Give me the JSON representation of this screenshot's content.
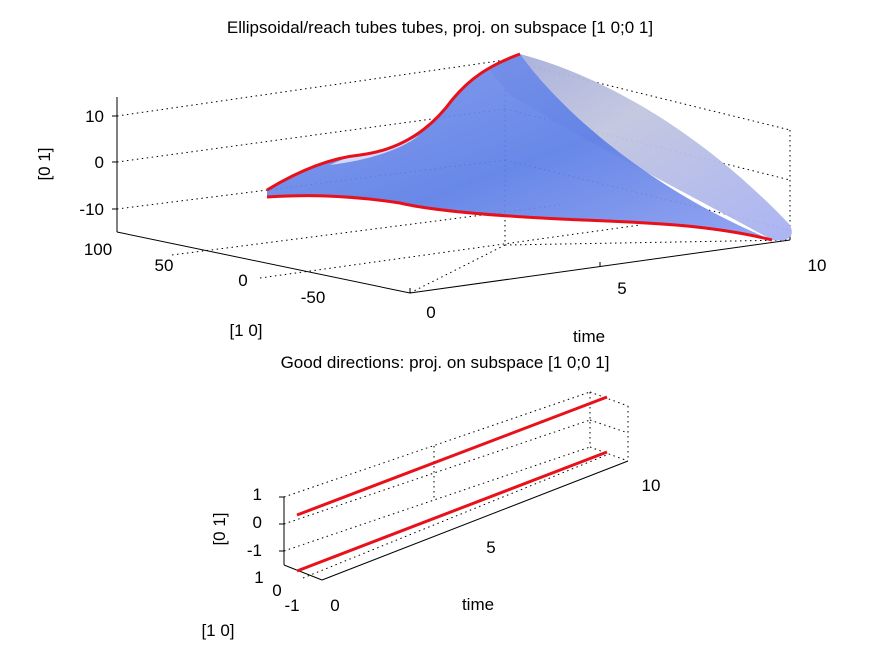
{
  "colors": {
    "tube_fill": "#5d7fe6",
    "tube_fill_light": "#b6bdf5",
    "tube_highlight": "#c9cfd8",
    "curve": "#e8111a",
    "axis": "#000000"
  },
  "chart_data": [
    {
      "type": "surface3d",
      "title": "Ellipsoidal/reach tubes tubes, proj. on subspace [1 0;0 1]",
      "xlabel": "time",
      "ylabel": "[1 0]",
      "zlabel": "[0 1]",
      "xlim": [
        0,
        10
      ],
      "ylim": [
        -80,
        100
      ],
      "zlim": [
        -15,
        15
      ],
      "xticks": [
        "0",
        "5",
        "10"
      ],
      "yticks": [
        "100",
        "50",
        "0",
        "-50"
      ],
      "zticks": [
        "10",
        "0",
        "-10"
      ],
      "grid": true,
      "boundary_curves": [
        {
          "color": "red",
          "time": [
            0,
            1,
            2,
            3,
            4,
            5,
            6,
            7,
            8,
            9,
            10
          ],
          "x": [
            -3,
            -8,
            -14,
            -22,
            -30,
            -38,
            -46,
            -55,
            -63,
            -70,
            -76
          ],
          "y": [
            -5,
            -3,
            1,
            5,
            9,
            13,
            16,
            19,
            22,
            24,
            26
          ]
        },
        {
          "color": "red",
          "time": [
            0,
            1,
            2,
            3,
            4,
            5,
            6,
            7,
            8,
            9,
            10
          ],
          "x": [
            3,
            12,
            25,
            40,
            55,
            68,
            76,
            80,
            83,
            86,
            90
          ],
          "y": [
            5,
            2,
            -2,
            -6,
            -10,
            -13,
            -15,
            -16,
            -17,
            -18,
            -18
          ]
        }
      ]
    },
    {
      "type": "line3d",
      "title": "Good directions: proj. on subspace [1 0;0 1]",
      "xlabel": "time",
      "ylabel": "[1 0]",
      "zlabel": "[0 1]",
      "xlim": [
        0,
        10
      ],
      "ylim": [
        -1,
        1
      ],
      "zlim": [
        -1,
        1
      ],
      "xticks": [
        "0",
        "5",
        "10"
      ],
      "yticks": [
        "1",
        "0",
        "-1"
      ],
      "zticks": [
        "1",
        "0",
        "-1"
      ],
      "grid": true,
      "series": [
        {
          "time": [
            0,
            10
          ],
          "x": [
            0.7,
            0.7
          ],
          "y": [
            0.7,
            0.7
          ]
        },
        {
          "time": [
            0,
            10
          ],
          "x": [
            -0.7,
            -0.7
          ],
          "y": [
            -0.7,
            -0.7
          ]
        }
      ]
    }
  ]
}
